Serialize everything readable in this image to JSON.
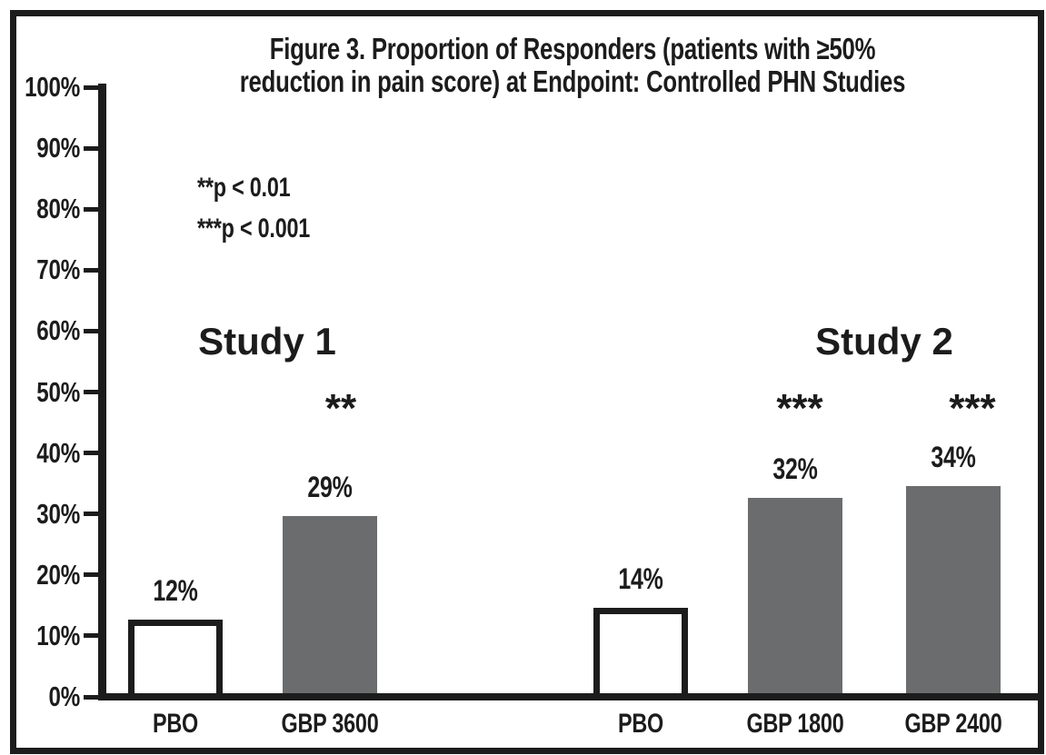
{
  "chart": {
    "title_line1": "Figure 3. Proportion of Responders (patients with ≥50%",
    "title_line2": "reduction in pain score) at Endpoint: Controlled PHN Studies"
  },
  "chart_data": {
    "type": "bar",
    "title": "Figure 3. Proportion of Responders (patients with ≥50% reduction in pain score) at Endpoint: Controlled PHN Studies",
    "xlabel": "",
    "ylabel": "",
    "ylim": [
      0,
      100
    ],
    "grid": false,
    "legend_position": "none",
    "yticks": [
      {
        "value": 0,
        "label": "0%"
      },
      {
        "value": 10,
        "label": "10%"
      },
      {
        "value": 20,
        "label": "20%"
      },
      {
        "value": 30,
        "label": "30%"
      },
      {
        "value": 40,
        "label": "40%"
      },
      {
        "value": 50,
        "label": "50%"
      },
      {
        "value": 60,
        "label": "60%"
      },
      {
        "value": 70,
        "label": "70%"
      },
      {
        "value": 80,
        "label": "80%"
      },
      {
        "value": 90,
        "label": "90%"
      },
      {
        "value": 100,
        "label": "100%"
      }
    ],
    "annotations": [
      "**p < 0.01",
      "***p < 0.001"
    ],
    "groups": [
      {
        "label": "Study 1",
        "bars": [
          {
            "category": "PBO",
            "value": 12,
            "value_label": "12%",
            "significance": "",
            "style": "placebo"
          },
          {
            "category": "GBP 3600",
            "value": 29,
            "value_label": "29%",
            "significance": "**",
            "style": "treatment"
          }
        ]
      },
      {
        "label": "Study 2",
        "bars": [
          {
            "category": "PBO",
            "value": 14,
            "value_label": "14%",
            "significance": "",
            "style": "placebo"
          },
          {
            "category": "GBP 1800",
            "value": 32,
            "value_label": "32%",
            "significance": "***",
            "style": "treatment"
          },
          {
            "category": "GBP 2400",
            "value": 34,
            "value_label": "34%",
            "significance": "***",
            "style": "treatment"
          }
        ]
      }
    ],
    "colors": {
      "ink": "#1c1c1c",
      "treatment_bar_fill": "#6a6c6e",
      "placebo_bar_fill": "#ffffff",
      "background": "#ffffff"
    }
  }
}
